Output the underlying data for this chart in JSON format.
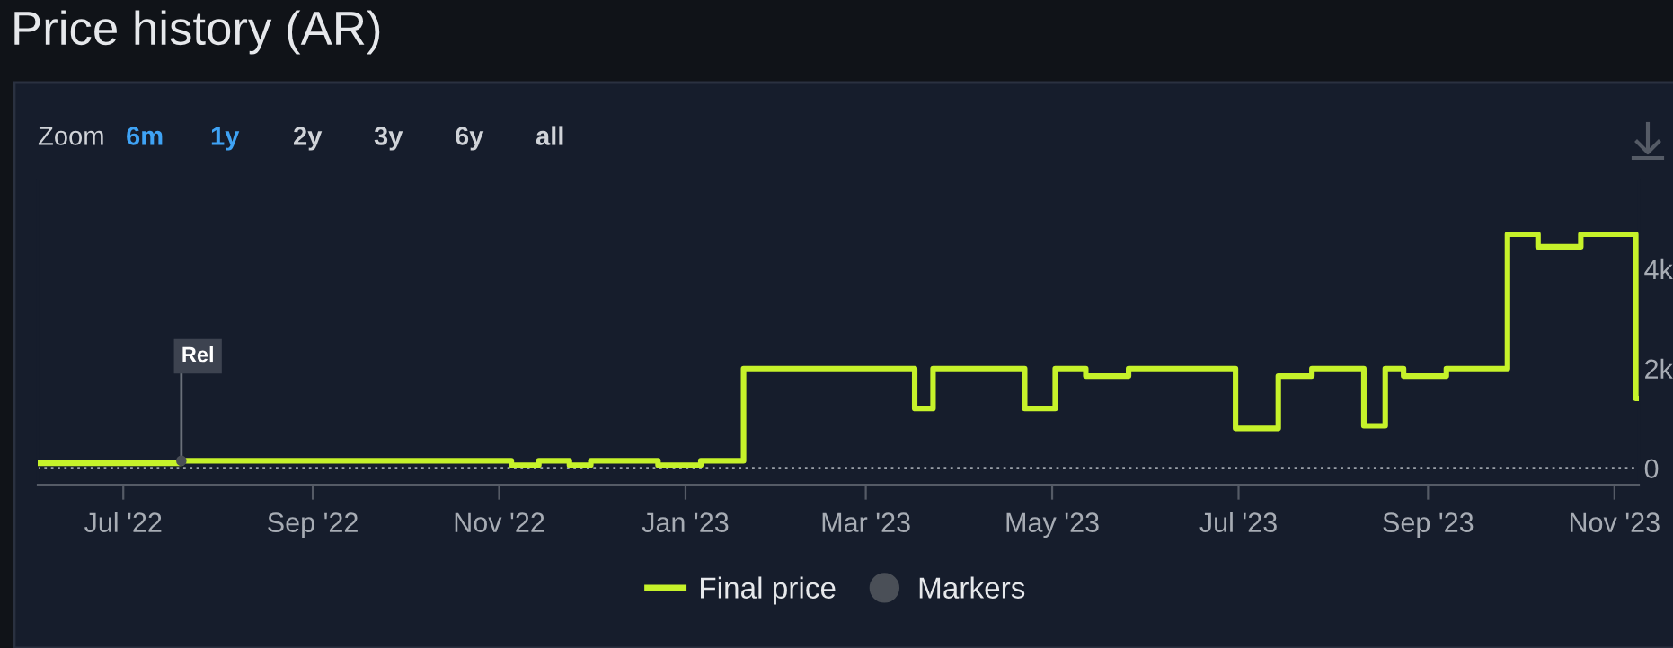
{
  "chart_data": {
    "type": "step",
    "title": "Price history (AR)",
    "x": [
      "2022-06-03",
      "2022-07-20",
      "2022-11-05",
      "2022-11-14",
      "2022-11-24",
      "2022-12-01",
      "2022-12-23",
      "2023-01-06",
      "2023-01-20",
      "2023-03-17",
      "2023-03-23",
      "2023-04-22",
      "2023-05-02",
      "2023-05-12",
      "2023-05-26",
      "2023-06-30",
      "2023-07-14",
      "2023-07-25",
      "2023-08-11",
      "2023-08-18",
      "2023-08-24",
      "2023-09-07",
      "2023-09-27",
      "2023-10-07",
      "2023-10-21",
      "2023-11-08",
      "2023-11-09"
    ],
    "series": [
      {
        "name": "Final price",
        "color": "#c6f22a",
        "values": [
          100,
          150,
          60,
          150,
          60,
          150,
          60,
          150,
          2000,
          1200,
          2000,
          1200,
          2000,
          1850,
          2000,
          800,
          1850,
          2000,
          850,
          2000,
          1850,
          2000,
          4700,
          4450,
          4700,
          1400,
          1400
        ]
      },
      {
        "name": "Markers",
        "type": "scatter",
        "color": "#4a4f57",
        "x": [
          "2022-07-20"
        ],
        "values": [
          150
        ]
      }
    ],
    "xlim": [
      "2022-06-03",
      "2023-11-09"
    ],
    "xticks": [
      {
        "value": "2022-07-01",
        "label": "Jul '22"
      },
      {
        "value": "2022-09-01",
        "label": "Sep '22"
      },
      {
        "value": "2022-11-01",
        "label": "Nov '22"
      },
      {
        "value": "2023-01-01",
        "label": "Jan '23"
      },
      {
        "value": "2023-03-01",
        "label": "Mar '23"
      },
      {
        "value": "2023-05-01",
        "label": "May '23"
      },
      {
        "value": "2023-07-01",
        "label": "Jul '23"
      },
      {
        "value": "2023-09-01",
        "label": "Sep '23"
      },
      {
        "value": "2023-11-01",
        "label": "Nov '23"
      }
    ],
    "ylim": [
      -330,
      5800
    ],
    "yticks": [
      0,
      {
        "value": 2000,
        "label": "2k"
      },
      {
        "value": 4000,
        "label": "4k"
      }
    ],
    "ref_lines": [
      {
        "axis": "y",
        "value": 0,
        "label": null,
        "color": "#9aa0a8",
        "line_style": "dotted"
      }
    ],
    "annotations": [
      {
        "text": "Rel",
        "x": "2022-07-20",
        "y": 150
      },
      "Zoom",
      "6m",
      "1y",
      "2y",
      "3y",
      "6y",
      "all"
    ],
    "grid": false,
    "legend": "bottom"
  }
}
